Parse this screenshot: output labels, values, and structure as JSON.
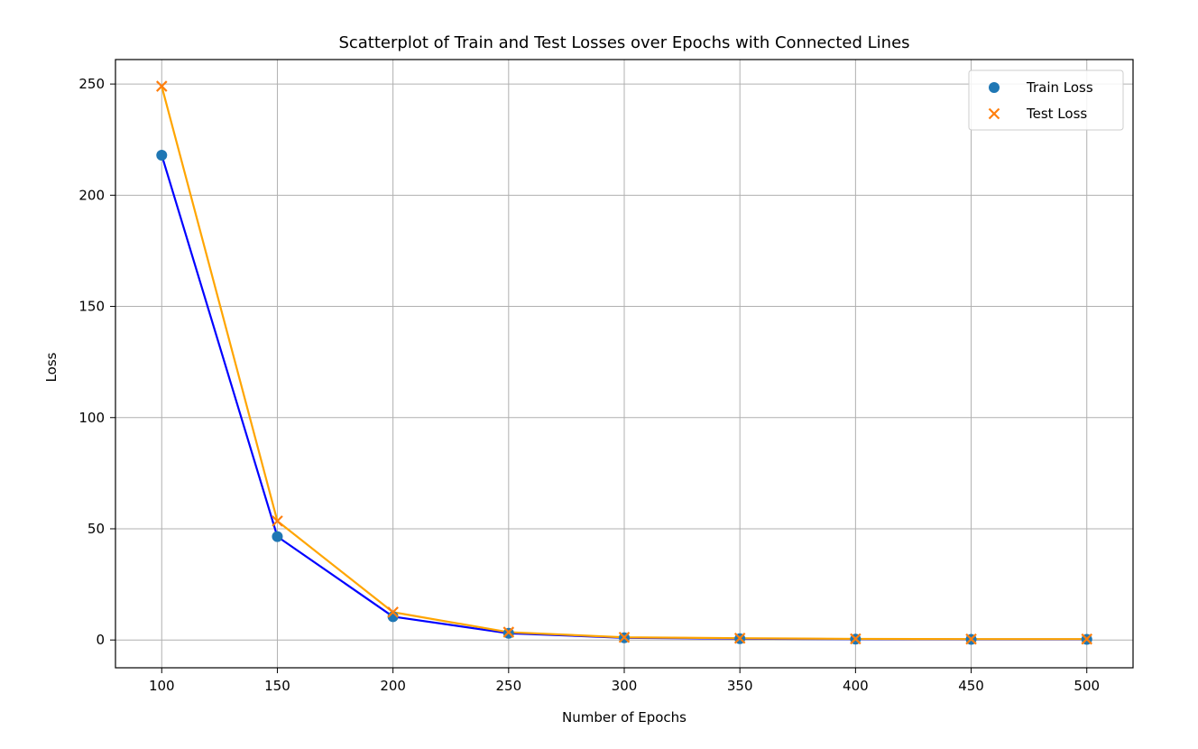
{
  "chart_data": {
    "type": "scatter",
    "title": "Scatterplot of Train and Test Losses over Epochs with Connected Lines",
    "xlabel": "Number of Epochs",
    "ylabel": "Loss",
    "x": [
      100,
      150,
      200,
      250,
      300,
      350,
      400,
      450,
      500
    ],
    "xticks": [
      100,
      150,
      200,
      250,
      300,
      350,
      400,
      450,
      500
    ],
    "yticks": [
      0,
      50,
      100,
      150,
      200,
      250
    ],
    "xlim": [
      80,
      520
    ],
    "ylim": [
      -12.5,
      261
    ],
    "grid": true,
    "legend_position": "top-right",
    "series": [
      {
        "name": "Train Loss",
        "marker": "circle",
        "marker_color": "#1f77b4",
        "line_color": "#0000ff",
        "values": [
          218,
          46.5,
          10.5,
          3,
          1,
          0.6,
          0.4,
          0.3,
          0.3
        ]
      },
      {
        "name": "Test Loss",
        "marker": "x",
        "marker_color": "#ff7f0e",
        "line_color": "#ffa500",
        "values": [
          249,
          53.5,
          12.5,
          3.5,
          1.2,
          0.8,
          0.5,
          0.4,
          0.4
        ]
      }
    ]
  }
}
